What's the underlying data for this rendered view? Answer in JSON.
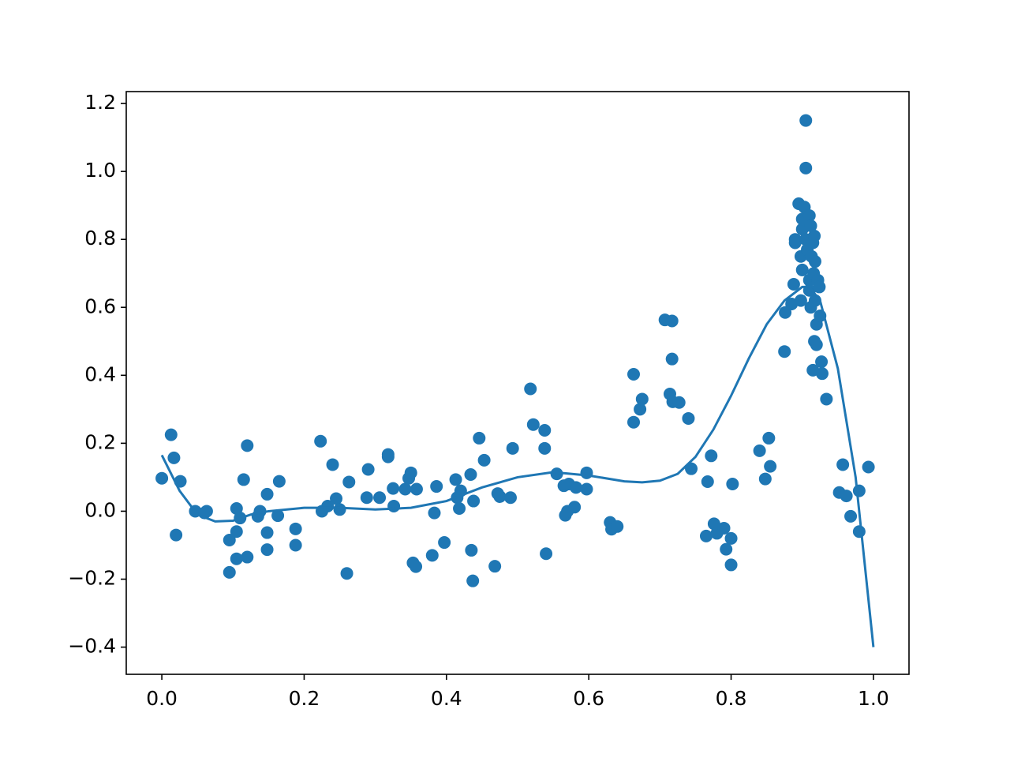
{
  "chart_data": {
    "type": "scatter",
    "xlim": [
      -0.05,
      1.05
    ],
    "ylim": [
      -0.48,
      1.235
    ],
    "xticks": [
      {
        "value": 0,
        "label": "0.0"
      },
      {
        "value": 0.2,
        "label": "0.2"
      },
      {
        "value": 0.4,
        "label": "0.4"
      },
      {
        "value": 0.6,
        "label": "0.6"
      },
      {
        "value": 0.8,
        "label": "0.8"
      },
      {
        "value": 1,
        "label": "1.0"
      }
    ],
    "yticks": [
      {
        "value": -0.4,
        "label": "−0.4"
      },
      {
        "value": -0.2,
        "label": "−0.2"
      },
      {
        "value": 0,
        "label": "0.0"
      },
      {
        "value": 0.2,
        "label": "0.2"
      },
      {
        "value": 0.4,
        "label": "0.4"
      },
      {
        "value": 0.6,
        "label": "0.6"
      },
      {
        "value": 0.8,
        "label": "0.8"
      },
      {
        "value": 1,
        "label": "1.0"
      },
      {
        "value": 1.2,
        "label": "1.2"
      }
    ],
    "grid": false,
    "series": [
      {
        "style": "markers",
        "color": "#1f77b4",
        "x": [
          0.0,
          0.013,
          0.017,
          0.02,
          0.026,
          0.047,
          0.063,
          0.06,
          0.095,
          0.095,
          0.105,
          0.105,
          0.105,
          0.11,
          0.115,
          0.12,
          0.12,
          0.135,
          0.138,
          0.148,
          0.148,
          0.148,
          0.163,
          0.165,
          0.188,
          0.188,
          0.223,
          0.225,
          0.233,
          0.24,
          0.245,
          0.25,
          0.26,
          0.263,
          0.288,
          0.29,
          0.306,
          0.318,
          0.318,
          0.325,
          0.326,
          0.342,
          0.347,
          0.35,
          0.358,
          0.353,
          0.357,
          0.38,
          0.383,
          0.386,
          0.397,
          0.413,
          0.415,
          0.418,
          0.42,
          0.434,
          0.435,
          0.437,
          0.438,
          0.446,
          0.453,
          0.468,
          0.472,
          0.475,
          0.49,
          0.493,
          0.518,
          0.522,
          0.538,
          0.538,
          0.54,
          0.555,
          0.565,
          0.567,
          0.57,
          0.572,
          0.58,
          0.582,
          0.597,
          0.597,
          0.63,
          0.632,
          0.64,
          0.663,
          0.663,
          0.672,
          0.675,
          0.707,
          0.714,
          0.717,
          0.717,
          0.718,
          0.727,
          0.74,
          0.744,
          0.765,
          0.767,
          0.772,
          0.776,
          0.78,
          0.79,
          0.793,
          0.8,
          0.8,
          0.802,
          0.84,
          0.848,
          0.853,
          0.855,
          0.875,
          0.876,
          0.885,
          0.888,
          0.89,
          0.89,
          0.895,
          0.898,
          0.898,
          0.9,
          0.9,
          0.9,
          0.903,
          0.905,
          0.905,
          0.905,
          0.907,
          0.91,
          0.91,
          0.91,
          0.912,
          0.912,
          0.913,
          0.915,
          0.915,
          0.916,
          0.917,
          0.917,
          0.918,
          0.918,
          0.92,
          0.92,
          0.922,
          0.924,
          0.925,
          0.927,
          0.928,
          0.934,
          0.952,
          0.957,
          0.962,
          0.968,
          0.98,
          0.98,
          0.993
        ],
        "values": [
          0.097,
          0.225,
          0.157,
          -0.07,
          0.088,
          0.0,
          0.0,
          -0.005,
          -0.085,
          -0.18,
          -0.06,
          0.008,
          -0.14,
          -0.02,
          0.093,
          -0.135,
          0.193,
          -0.015,
          0.0,
          0.05,
          -0.063,
          -0.113,
          -0.013,
          0.088,
          -0.052,
          -0.1,
          0.206,
          0.0,
          0.015,
          0.137,
          0.037,
          0.005,
          -0.183,
          0.086,
          0.04,
          0.123,
          0.04,
          0.167,
          0.16,
          0.067,
          0.015,
          0.065,
          0.097,
          0.113,
          0.065,
          -0.152,
          -0.163,
          -0.13,
          -0.005,
          0.073,
          -0.092,
          0.093,
          0.04,
          0.008,
          0.06,
          0.108,
          -0.115,
          -0.205,
          0.03,
          0.215,
          0.15,
          -0.162,
          0.052,
          0.043,
          0.04,
          0.185,
          0.36,
          0.255,
          0.238,
          0.185,
          -0.125,
          0.11,
          0.075,
          -0.012,
          0.0,
          0.08,
          0.012,
          0.07,
          0.113,
          0.065,
          -0.033,
          -0.053,
          -0.045,
          0.403,
          0.262,
          0.3,
          0.33,
          0.563,
          0.345,
          0.56,
          0.448,
          0.322,
          0.32,
          0.273,
          0.125,
          -0.073,
          0.087,
          0.163,
          -0.037,
          -0.065,
          -0.05,
          -0.112,
          -0.158,
          -0.08,
          0.08,
          0.178,
          0.095,
          0.215,
          0.132,
          0.47,
          0.585,
          0.61,
          0.668,
          0.8,
          0.79,
          0.905,
          0.62,
          0.75,
          0.86,
          0.83,
          0.71,
          0.895,
          1.15,
          1.01,
          0.8,
          0.77,
          0.68,
          0.65,
          0.87,
          0.84,
          0.6,
          0.75,
          0.79,
          0.415,
          0.7,
          0.81,
          0.5,
          0.62,
          0.735,
          0.55,
          0.49,
          0.68,
          0.66,
          0.575,
          0.44,
          0.405,
          0.33,
          0.055,
          0.137,
          0.045,
          -0.015,
          0.06,
          -0.06,
          0.13
        ]
      },
      {
        "style": "line",
        "color": "#1f77b4",
        "x": [
          0,
          0.025,
          0.05,
          0.075,
          0.1,
          0.125,
          0.15,
          0.2,
          0.25,
          0.3,
          0.35,
          0.4,
          0.45,
          0.5,
          0.55,
          0.6,
          0.65,
          0.675,
          0.7,
          0.725,
          0.75,
          0.775,
          0.8,
          0.825,
          0.85,
          0.875,
          0.9,
          0.91,
          0.925,
          0.95,
          0.975,
          1.0
        ],
        "values": [
          0.165,
          0.06,
          -0.01,
          -0.03,
          -0.028,
          -0.01,
          0.0,
          0.01,
          0.01,
          0.005,
          0.01,
          0.03,
          0.07,
          0.1,
          0.115,
          0.105,
          0.088,
          0.085,
          0.09,
          0.11,
          0.16,
          0.24,
          0.34,
          0.45,
          0.55,
          0.62,
          0.66,
          0.66,
          0.62,
          0.42,
          0.1,
          -0.4
        ]
      }
    ]
  }
}
